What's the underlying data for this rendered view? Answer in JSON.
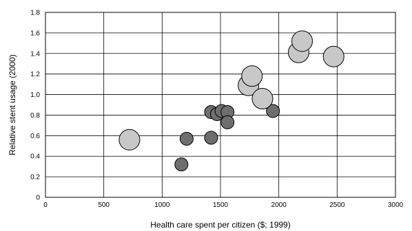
{
  "chart_data": {
    "type": "scatter",
    "title": "",
    "xlabel": "Health care spent per citizen ($; 1999)",
    "ylabel": "Relative stent usage  (2000)",
    "xlim": [
      0,
      3000
    ],
    "ylim": [
      0,
      1.8
    ],
    "x_ticks": [
      0,
      500,
      1000,
      1500,
      2000,
      2500,
      3000
    ],
    "x_tick_labels": [
      "0",
      "500",
      "1000",
      "1500",
      "2000",
      "2500",
      "3000"
    ],
    "y_ticks": [
      0,
      0.2,
      0.4,
      0.6,
      0.8,
      1.0,
      1.2,
      1.4,
      1.6,
      1.8
    ],
    "y_tick_labels": [
      "0",
      "0.2",
      "0.4",
      "0.6",
      "0.8",
      "1.0",
      "1.2",
      "1.4",
      "1.6",
      "1.8"
    ],
    "grid": true,
    "legend": "none",
    "series": [
      {
        "color": "#6e6e6e",
        "size": "small",
        "points": [
          {
            "x": 1165,
            "y": 0.32
          },
          {
            "x": 1210,
            "y": 0.57
          },
          {
            "x": 1420,
            "y": 0.58
          },
          {
            "x": 1420,
            "y": 0.83
          },
          {
            "x": 1470,
            "y": 0.81
          },
          {
            "x": 1510,
            "y": 0.84
          },
          {
            "x": 1560,
            "y": 0.83
          },
          {
            "x": 1560,
            "y": 0.73
          },
          {
            "x": 1950,
            "y": 0.84
          }
        ]
      },
      {
        "color": "#c8c8c8",
        "size": "large",
        "points": [
          {
            "x": 720,
            "y": 0.56
          },
          {
            "x": 1740,
            "y": 1.09
          },
          {
            "x": 1770,
            "y": 1.18
          },
          {
            "x": 1860,
            "y": 0.96
          },
          {
            "x": 2170,
            "y": 1.41
          },
          {
            "x": 2200,
            "y": 1.52
          },
          {
            "x": 2470,
            "y": 1.37
          }
        ]
      }
    ]
  }
}
